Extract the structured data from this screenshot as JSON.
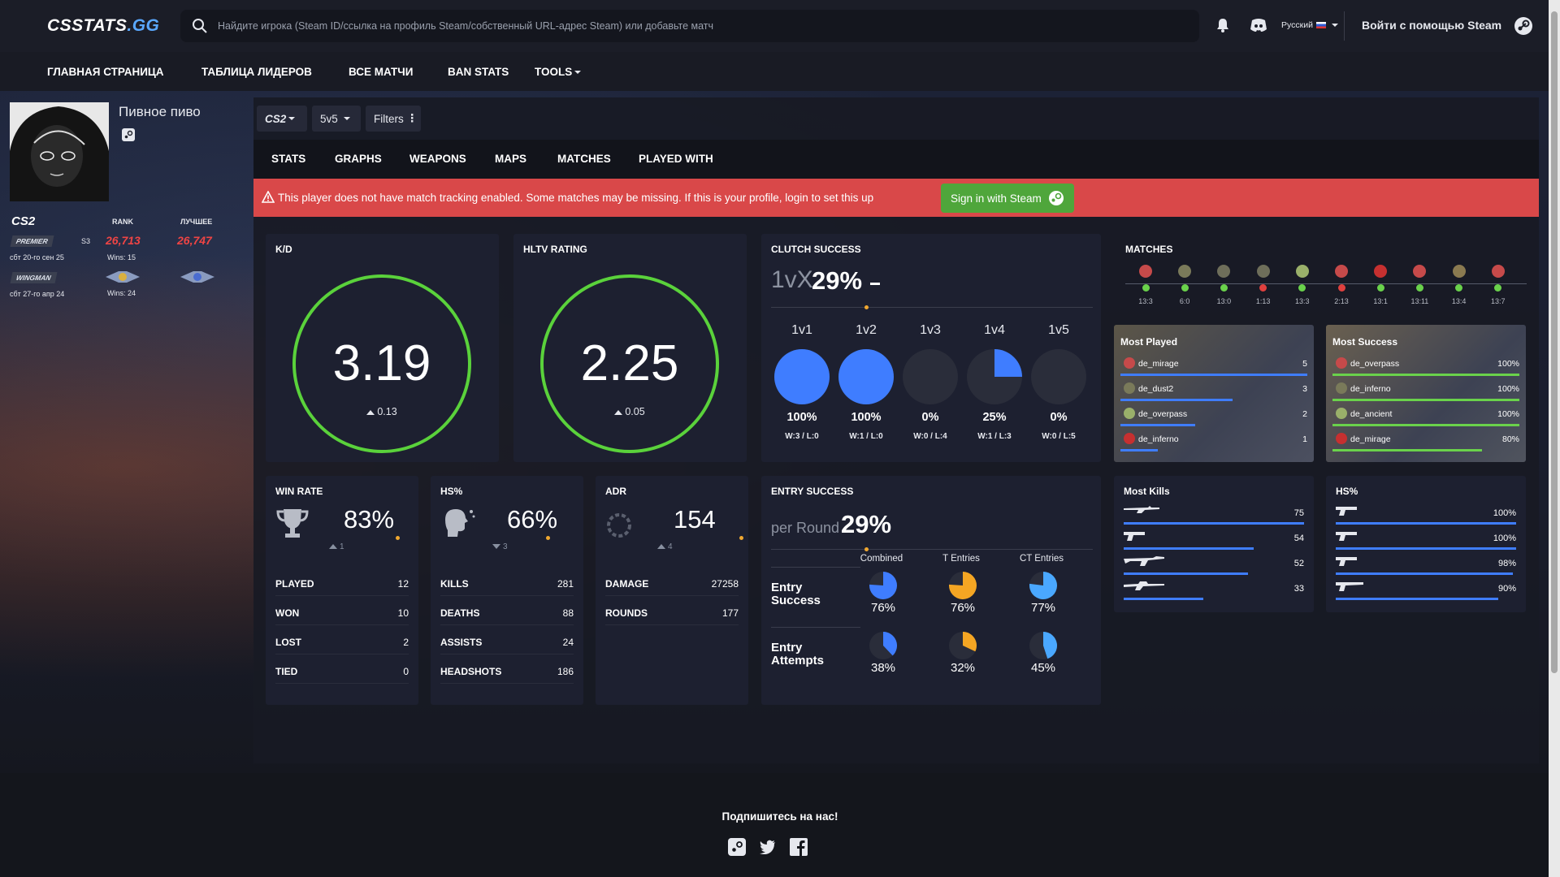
{
  "logo": {
    "part1": "CSSTATS",
    "part2": ".GG"
  },
  "search": {
    "placeholder": "Найдите игрока (Steam ID/ссылка на профиль Steam/собственный URL-адрес Steam) или добавьте матч"
  },
  "header": {
    "language": "Русский",
    "login_label": "Войти с помощью Steam"
  },
  "nav": {
    "items": [
      "ГЛАВНАЯ СТРАНИЦА",
      "ТАБЛИЦА ЛИДЕРОВ",
      "ВСЕ МАТЧИ",
      "BAN STATS",
      "TOOLS"
    ]
  },
  "profile": {
    "name": "Пивное пиво",
    "game_logo": "CS2",
    "rank_header": "RANK",
    "best_header": "ЛУЧШЕЕ",
    "premier": {
      "label": "PREMIER",
      "season": "S3",
      "rank": "26,713",
      "best": "26,747",
      "date": "сбт 20-го сен 25",
      "wins": "Wins: 15"
    },
    "wingman": {
      "label": "WINGMAN",
      "date": "сбт 27-го апр 24",
      "wins": "Wins: 24"
    }
  },
  "filters": {
    "game": "CS2",
    "mode": "5v5",
    "filters_label": "Filters"
  },
  "tabs": [
    "STATS",
    "GRAPHS",
    "WEAPONS",
    "MAPS",
    "MATCHES",
    "PLAYED WITH"
  ],
  "alert": {
    "text": "This player does not have match tracking enabled. Some matches may be missing. If this is your profile, login to set this up",
    "button": "Sign in with Steam",
    "color": "#d94849"
  },
  "kd": {
    "title": "K/D",
    "value": "3.19",
    "change": "0.13"
  },
  "hltv": {
    "title": "HLTV RATING",
    "value": "2.25",
    "change": "0.05"
  },
  "clutch": {
    "title": "CLUTCH SUCCESS",
    "prefix": "1vX",
    "value": "29%",
    "items": [
      {
        "label": "1v1",
        "pct": "100%",
        "wl": "W:3 / L:0",
        "fraction": 1.0
      },
      {
        "label": "1v2",
        "pct": "100%",
        "wl": "W:1 / L:0",
        "fraction": 1.0
      },
      {
        "label": "1v3",
        "pct": "0%",
        "wl": "W:0 / L:4",
        "fraction": 0.0
      },
      {
        "label": "1v4",
        "pct": "25%",
        "wl": "W:1 / L:3",
        "fraction": 0.25
      },
      {
        "label": "1v5",
        "pct": "0%",
        "wl": "W:0 / L:5",
        "fraction": 0.0
      }
    ]
  },
  "matches": {
    "title": "MATCHES",
    "results": [
      {
        "score": "13:3",
        "win": true
      },
      {
        "score": "6:0",
        "win": true
      },
      {
        "score": "13:0",
        "win": true
      },
      {
        "score": "1:13",
        "win": false
      },
      {
        "score": "13:3",
        "win": true
      },
      {
        "score": "2:13",
        "win": false
      },
      {
        "score": "13:1",
        "win": true
      },
      {
        "score": "13:11",
        "win": true
      },
      {
        "score": "13:4",
        "win": true
      },
      {
        "score": "13:7",
        "win": true
      }
    ]
  },
  "most_played": {
    "title": "Most Played",
    "rows": [
      {
        "map": "de_mirage",
        "value": "5",
        "fraction": 1.0
      },
      {
        "map": "de_dust2",
        "value": "3",
        "fraction": 0.6
      },
      {
        "map": "de_overpass",
        "value": "2",
        "fraction": 0.4
      },
      {
        "map": "de_inferno",
        "value": "1",
        "fraction": 0.2
      }
    ]
  },
  "most_success": {
    "title": "Most Success",
    "rows": [
      {
        "map": "de_overpass",
        "value": "100%",
        "fraction": 1.0
      },
      {
        "map": "de_inferno",
        "value": "100%",
        "fraction": 1.0
      },
      {
        "map": "de_ancient",
        "value": "100%",
        "fraction": 1.0
      },
      {
        "map": "de_mirage",
        "value": "80%",
        "fraction": 0.8
      }
    ]
  },
  "winrate": {
    "title": "WIN RATE",
    "value": "83%",
    "change": "1",
    "rows": [
      [
        "PLAYED",
        "12"
      ],
      [
        "WON",
        "10"
      ],
      [
        "LOST",
        "2"
      ],
      [
        "TIED",
        "0"
      ]
    ]
  },
  "hs": {
    "title": "HS%",
    "value": "66%",
    "change": "3",
    "rows": [
      [
        "KILLS",
        "281"
      ],
      [
        "DEATHS",
        "88"
      ],
      [
        "ASSISTS",
        "24"
      ],
      [
        "HEADSHOTS",
        "186"
      ]
    ]
  },
  "adr": {
    "title": "ADR",
    "value": "154",
    "change": "4",
    "rows": [
      [
        "DAMAGE",
        "27258"
      ],
      [
        "ROUNDS",
        "177"
      ]
    ]
  },
  "entry": {
    "title": "ENTRY SUCCESS",
    "prefix": "per Round",
    "value": "29%",
    "columns": [
      "Combined",
      "T Entries",
      "CT Entries"
    ],
    "rows": [
      {
        "label": "Entry Success",
        "values": [
          "76%",
          "76%",
          "77%"
        ],
        "fractions": [
          0.76,
          0.76,
          0.77
        ]
      },
      {
        "label": "Entry Attempts",
        "values": [
          "38%",
          "32%",
          "45%"
        ],
        "fractions": [
          0.38,
          0.32,
          0.45
        ]
      }
    ],
    "colors": [
      "#3f7dff",
      "#f5a623",
      "#4aa8ff"
    ]
  },
  "most_kills": {
    "title": "Most Kills",
    "rows": [
      {
        "value": "75",
        "fraction": 1.0
      },
      {
        "value": "54",
        "fraction": 0.72
      },
      {
        "value": "52",
        "fraction": 0.69
      },
      {
        "value": "33",
        "fraction": 0.44
      }
    ]
  },
  "hs_weapons": {
    "title": "HS%",
    "rows": [
      {
        "value": "100%",
        "fraction": 1.0
      },
      {
        "value": "100%",
        "fraction": 1.0
      },
      {
        "value": "98%",
        "fraction": 0.98
      },
      {
        "value": "90%",
        "fraction": 0.9
      }
    ]
  },
  "footer": {
    "text": "Подпишитесь на нас!"
  },
  "colors": {
    "accent_green": "#5ad23b",
    "blue": "#3f7dff",
    "orange": "#f0a830",
    "loss_red": "#e0403e",
    "win_green": "#6ad24b"
  }
}
